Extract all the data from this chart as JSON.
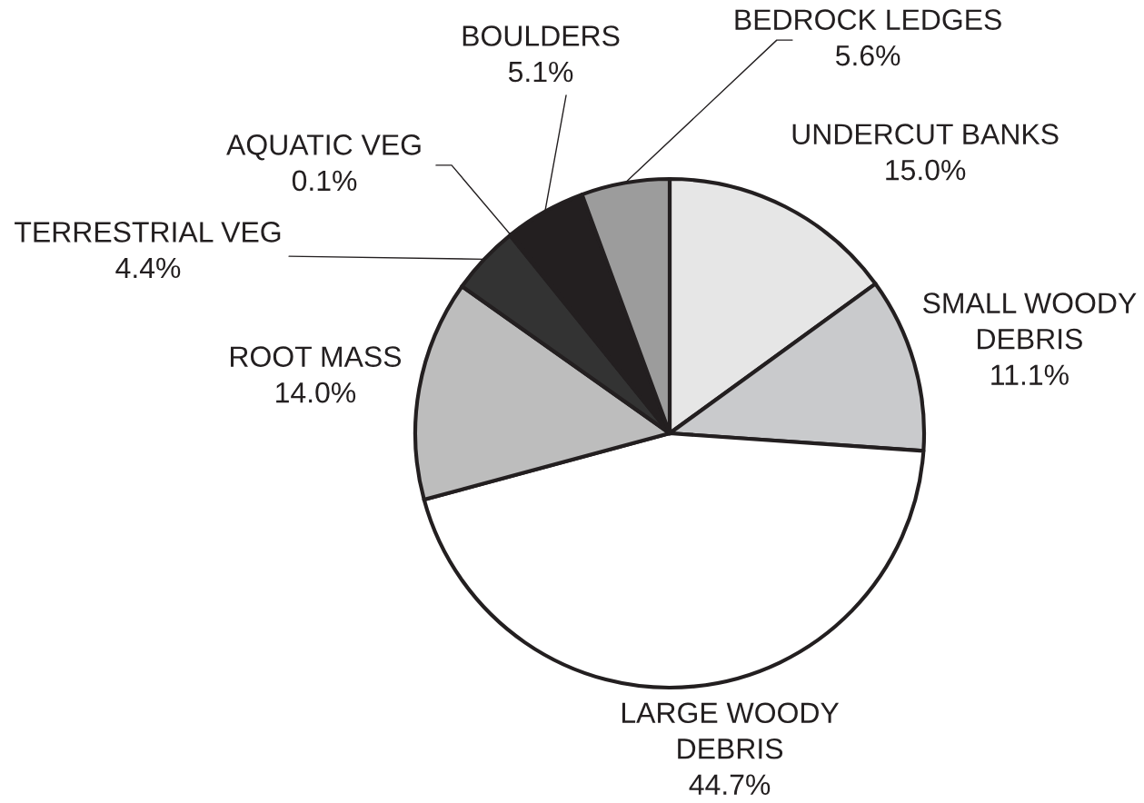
{
  "chart_data": {
    "type": "pie",
    "categories": [
      "UNDERCUT BANKS",
      "SMALL WOODY DEBRIS",
      "LARGE WOODY DEBRIS",
      "ROOT MASS",
      "TERRESTRIAL VEG",
      "AQUATIC VEG",
      "BOULDERS",
      "BEDROCK LEDGES"
    ],
    "values": [
      15.0,
      11.1,
      44.7,
      14.0,
      4.4,
      0.1,
      5.1,
      5.6
    ],
    "value_labels": [
      "15.0%",
      "11.1%",
      "44.7%",
      "14.0%",
      "4.4%",
      "0.1%",
      "5.1%",
      "5.6%"
    ],
    "colors": [
      "#e6e6e6",
      "#c9cacc",
      "#ffffff",
      "#bdbdbd",
      "#333333",
      "#ffffff",
      "#231f20",
      "#9c9c9c"
    ]
  }
}
